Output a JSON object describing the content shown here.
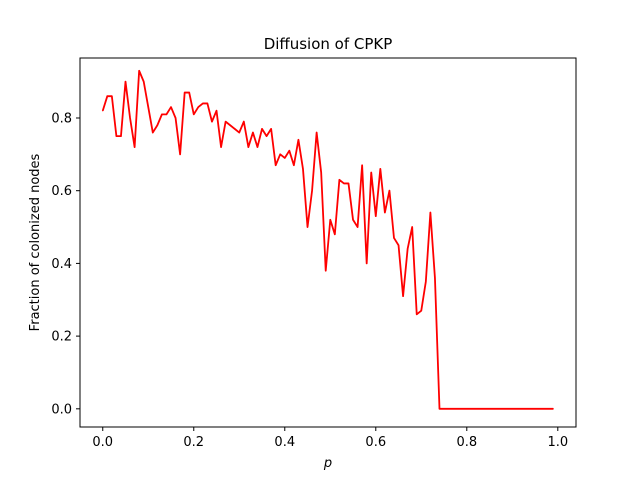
{
  "chart_data": {
    "type": "line",
    "title": "Diffusion of CPKP",
    "xlabel": "p",
    "ylabel": "Fraction of colonized nodes",
    "xlim": [
      -0.05,
      1.04
    ],
    "ylim": [
      -0.05,
      0.965
    ],
    "xticks": [
      0.0,
      0.2,
      0.4,
      0.6,
      0.8,
      1.0
    ],
    "xtick_labels": [
      "0.0",
      "0.2",
      "0.4",
      "0.6",
      "0.8",
      "1.0"
    ],
    "yticks": [
      0.0,
      0.2,
      0.4,
      0.6,
      0.8
    ],
    "ytick_labels": [
      "0.0",
      "0.2",
      "0.4",
      "0.6",
      "0.8"
    ],
    "grid": false,
    "series": [
      {
        "color": "#ff0000",
        "x": [
          0.0,
          0.01,
          0.02,
          0.03,
          0.04,
          0.05,
          0.06,
          0.07,
          0.08,
          0.09,
          0.1,
          0.11,
          0.12,
          0.13,
          0.14,
          0.15,
          0.16,
          0.17,
          0.18,
          0.19,
          0.2,
          0.21,
          0.22,
          0.23,
          0.24,
          0.25,
          0.26,
          0.27,
          0.28,
          0.29,
          0.3,
          0.31,
          0.32,
          0.33,
          0.34,
          0.35,
          0.36,
          0.37,
          0.38,
          0.39,
          0.4,
          0.41,
          0.42,
          0.43,
          0.44,
          0.45,
          0.46,
          0.47,
          0.48,
          0.49,
          0.5,
          0.51,
          0.52,
          0.53,
          0.54,
          0.55,
          0.56,
          0.57,
          0.58,
          0.59,
          0.6,
          0.61,
          0.62,
          0.63,
          0.64,
          0.65,
          0.66,
          0.67,
          0.68,
          0.69,
          0.7,
          0.71,
          0.72,
          0.73,
          0.74,
          0.75,
          0.76,
          0.77,
          0.78,
          0.79,
          0.8,
          0.81,
          0.82,
          0.83,
          0.84,
          0.85,
          0.86,
          0.87,
          0.88,
          0.89,
          0.9,
          0.91,
          0.92,
          0.93,
          0.94,
          0.95,
          0.96,
          0.97,
          0.98,
          0.99
        ],
        "y": [
          0.82,
          0.86,
          0.86,
          0.75,
          0.75,
          0.9,
          0.8,
          0.72,
          0.93,
          0.9,
          0.83,
          0.76,
          0.78,
          0.81,
          0.81,
          0.83,
          0.8,
          0.7,
          0.87,
          0.87,
          0.81,
          0.83,
          0.84,
          0.84,
          0.79,
          0.82,
          0.72,
          0.79,
          0.78,
          0.77,
          0.76,
          0.79,
          0.72,
          0.76,
          0.72,
          0.77,
          0.75,
          0.77,
          0.67,
          0.7,
          0.69,
          0.71,
          0.67,
          0.74,
          0.66,
          0.5,
          0.6,
          0.76,
          0.65,
          0.38,
          0.52,
          0.48,
          0.63,
          0.62,
          0.62,
          0.52,
          0.5,
          0.67,
          0.4,
          0.65,
          0.53,
          0.66,
          0.54,
          0.6,
          0.47,
          0.45,
          0.31,
          0.44,
          0.5,
          0.26,
          0.27,
          0.35,
          0.54,
          0.36,
          0.0,
          0.0,
          0.0,
          0.0,
          0.0,
          0.0,
          0.0,
          0.0,
          0.0,
          0.0,
          0.0,
          0.0,
          0.0,
          0.0,
          0.0,
          0.0,
          0.0,
          0.0,
          0.0,
          0.0,
          0.0,
          0.0,
          0.0,
          0.0,
          0.0,
          0.0
        ]
      }
    ]
  }
}
